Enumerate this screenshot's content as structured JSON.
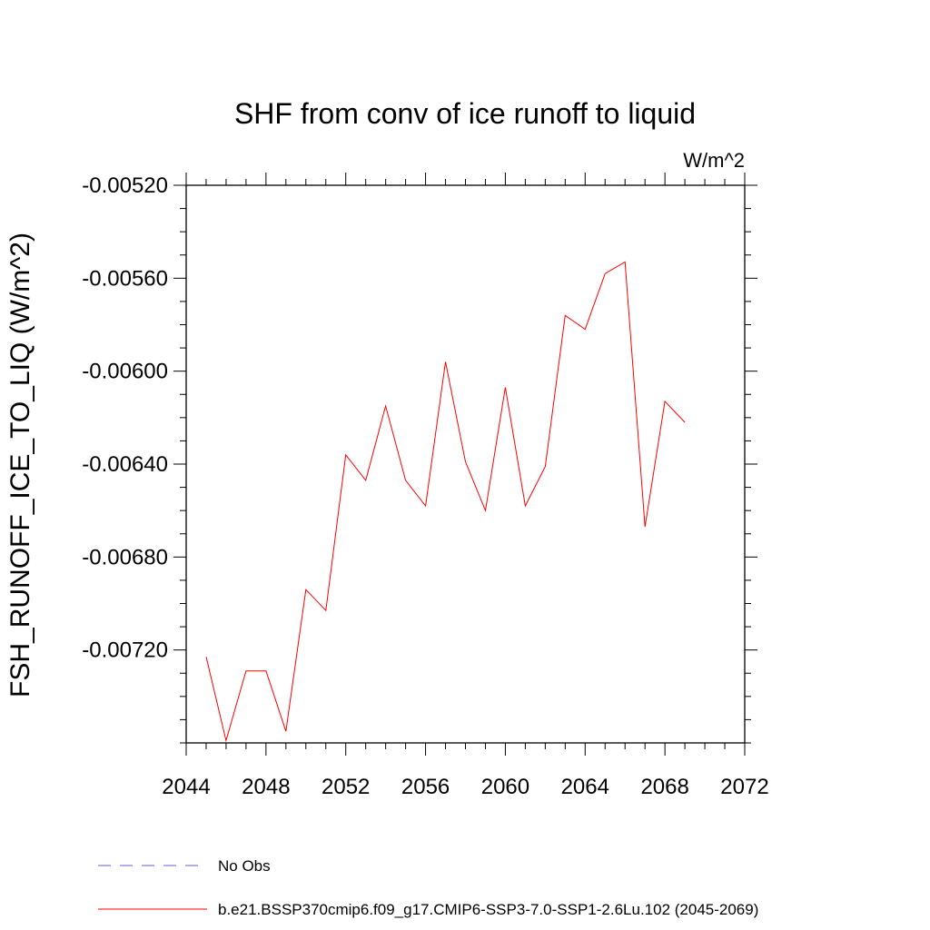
{
  "chart_data": {
    "type": "line",
    "title": "SHF from conv of ice runoff to liquid",
    "units": "W/m^2",
    "ylabel": "FSH_RUNOFF_ICE_TO_LIQ  (W/m^2)",
    "xlabel": "",
    "xlim": [
      2044,
      2072
    ],
    "ylim": [
      -0.0076,
      -0.0052
    ],
    "x_ticks": [
      2044,
      2048,
      2052,
      2056,
      2060,
      2064,
      2068,
      2072
    ],
    "x_tick_labels": [
      "2044",
      "2048",
      "2052",
      "2056",
      "2060",
      "2064",
      "2068",
      "2072"
    ],
    "y_ticks": [
      -0.0052,
      -0.0056,
      -0.006,
      -0.0064,
      -0.0068,
      -0.0072
    ],
    "y_tick_labels": [
      "-0.00520",
      "-0.00560",
      "-0.00600",
      "-0.00640",
      "-0.00680",
      "-0.00720"
    ],
    "grid": false,
    "legend_position": "bottom",
    "series": [
      {
        "name": "b.e21.BSSP370cmip6.f09_g17.CMIP6-SSP3-7.0-SSP1-2.6Lu.102 (2045-2069)",
        "color": "#ff0000",
        "style": "solid",
        "x": [
          2045,
          2046,
          2047,
          2048,
          2049,
          2050,
          2051,
          2052,
          2053,
          2054,
          2055,
          2056,
          2057,
          2058,
          2059,
          2060,
          2061,
          2062,
          2063,
          2064,
          2065,
          2066,
          2067,
          2068,
          2069
        ],
        "y": [
          -0.00723,
          -0.00759,
          -0.00729,
          -0.00729,
          -0.00755,
          -0.00694,
          -0.00703,
          -0.00636,
          -0.00647,
          -0.00615,
          -0.00647,
          -0.00658,
          -0.00596,
          -0.00639,
          -0.0066,
          -0.00607,
          -0.00658,
          -0.00641,
          -0.00576,
          -0.00582,
          -0.00558,
          -0.00553,
          -0.00667,
          -0.00613,
          -0.00622
        ]
      }
    ],
    "legend": [
      {
        "label": "No Obs",
        "color": "#6a5acd",
        "style": "dashed"
      },
      {
        "label": "b.e21.BSSP370cmip6.f09_g17.CMIP6-SSP3-7.0-SSP1-2.6Lu.102 (2045-2069)",
        "color": "#ff0000",
        "style": "solid"
      }
    ]
  }
}
